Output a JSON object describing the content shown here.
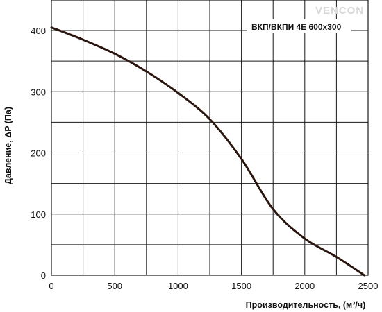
{
  "chart_data": {
    "type": "line",
    "title": "",
    "series": [
      {
        "name": "ВКП/ВКПИ 4Е 600x300",
        "color": "#2a160e",
        "x": [
          0,
          250,
          500,
          750,
          1000,
          1250,
          1500,
          1750,
          2000,
          2250,
          2470
        ],
        "y": [
          405,
          385,
          362,
          333,
          298,
          255,
          190,
          108,
          60,
          30,
          0
        ]
      }
    ],
    "xlabel": "Производительность, (м³/ч)",
    "ylabel": "Давление, ΔP (Па)",
    "xlim": [
      0,
      2500
    ],
    "ylim": [
      0,
      400
    ],
    "xticks": [
      0,
      500,
      1000,
      1500,
      2000,
      2500
    ],
    "yticks": [
      0,
      100,
      200,
      300,
      400
    ],
    "grid": true,
    "grid_x_step": 250,
    "grid_y_step": 50,
    "legend": "top-right"
  },
  "watermark": "VENCON"
}
